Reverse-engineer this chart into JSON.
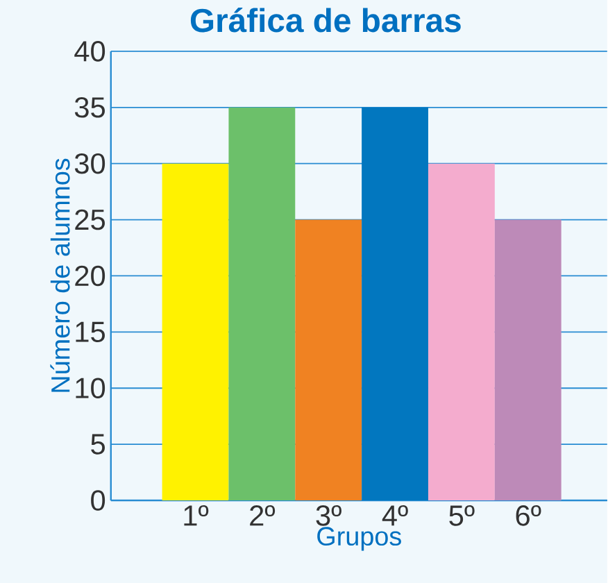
{
  "chart_data": {
    "type": "bar",
    "title": "Gráfica de barras",
    "xlabel": "Grupos",
    "ylabel": "Número de alumnos",
    "categories": [
      "1º",
      "2º",
      "3º",
      "4º",
      "5º",
      "6º"
    ],
    "values": [
      30,
      35,
      25,
      35,
      30,
      25
    ],
    "colors": [
      "#fff200",
      "#6cc06a",
      "#f08222",
      "#0277bf",
      "#f4acce",
      "#bd8ab8"
    ],
    "ylim": [
      0,
      40
    ],
    "yticks": [
      0,
      5,
      10,
      15,
      20,
      25,
      30,
      35,
      40
    ],
    "grid": "y"
  }
}
